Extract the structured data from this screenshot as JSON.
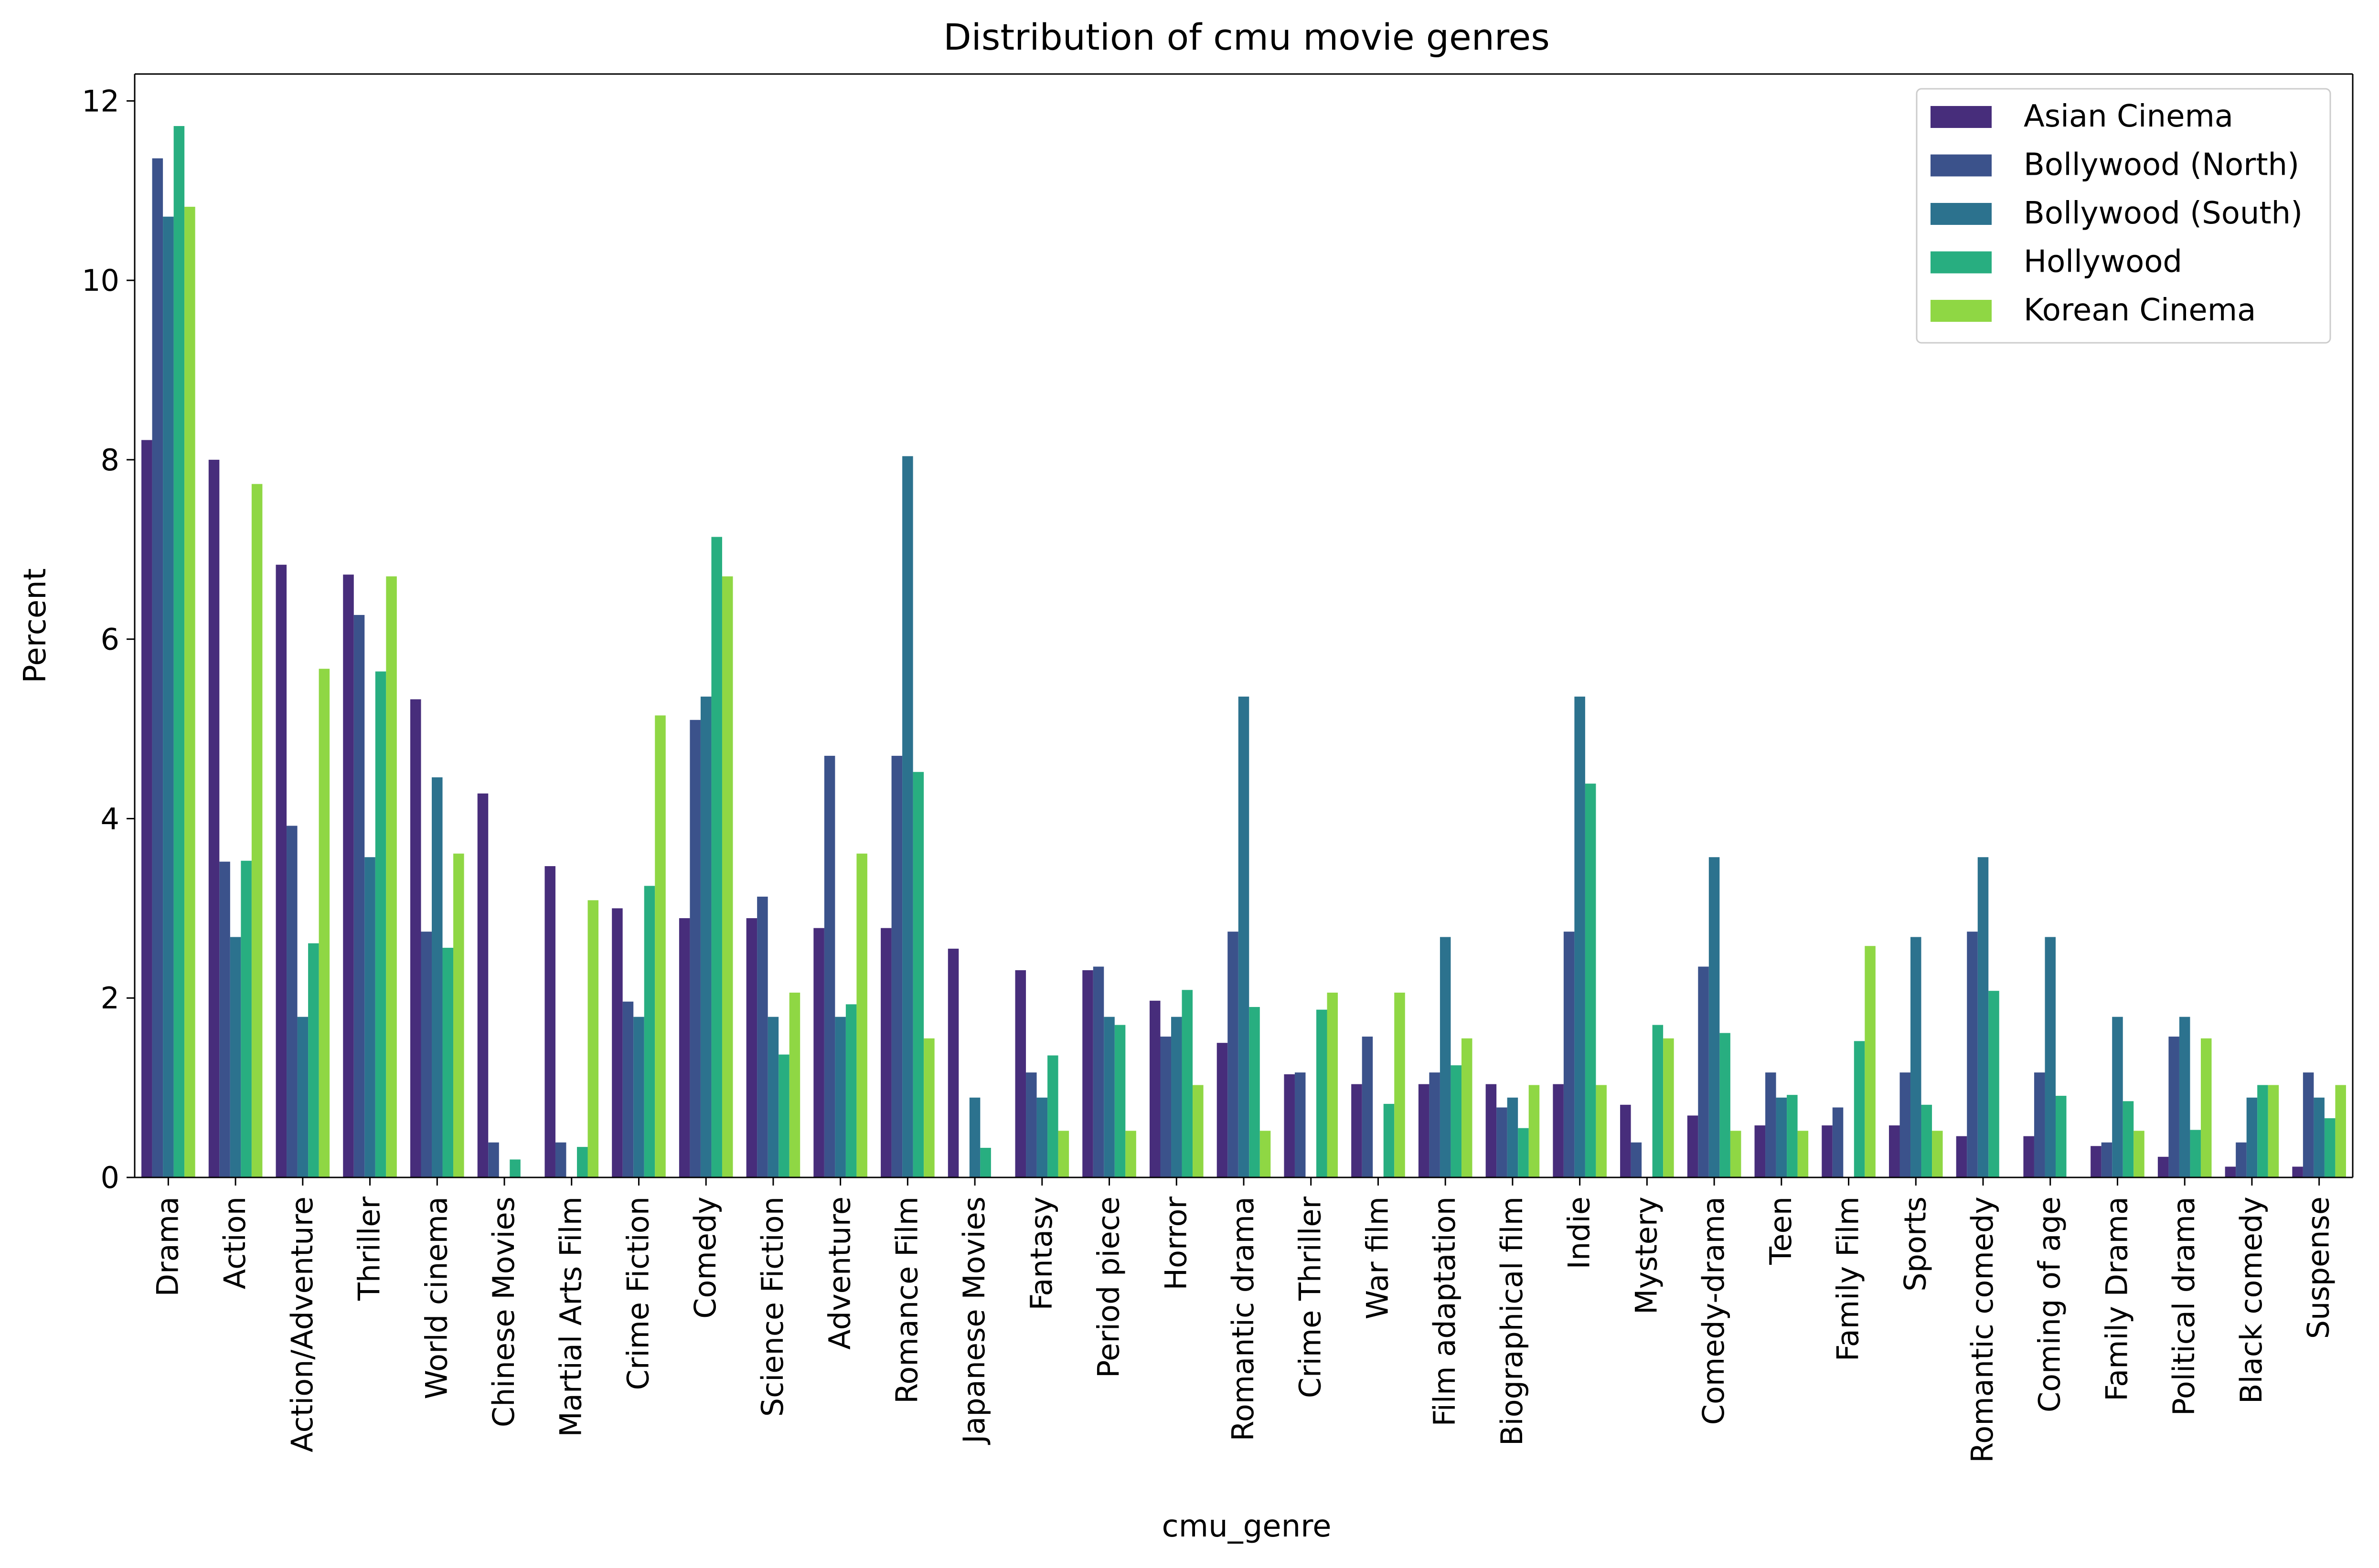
{
  "chart_data": {
    "type": "bar",
    "title": "Distribution of cmu movie genres",
    "xlabel": "cmu_genre",
    "ylabel": "Percent",
    "ylim": [
      0,
      12.3
    ],
    "yticks": [
      0,
      2,
      4,
      6,
      8,
      10,
      12
    ],
    "grid": false,
    "legend_position": "top-right",
    "categories": [
      "Drama",
      "Action",
      "Action/Adventure",
      "Thriller",
      "World cinema",
      "Chinese Movies",
      "Martial Arts Film",
      "Crime Fiction",
      "Comedy",
      "Science Fiction",
      "Adventure",
      "Romance Film",
      "Japanese Movies",
      "Fantasy",
      "Period piece",
      "Horror",
      "Romantic drama",
      "Crime Thriller",
      "War film",
      "Film adaptation",
      "Biographical film",
      "Indie",
      "Mystery",
      "Comedy-drama",
      "Teen",
      "Family Film",
      "Sports",
      "Romantic comedy",
      "Coming of age",
      "Family Drama",
      "Political drama",
      "Black comedy",
      "Suspense"
    ],
    "series": [
      {
        "name": "Asian Cinema",
        "color": "#472d7b",
        "values": [
          8.22,
          8.0,
          6.83,
          6.72,
          5.33,
          4.28,
          3.47,
          3.0,
          2.89,
          2.89,
          2.78,
          2.78,
          2.55,
          2.31,
          2.31,
          1.97,
          1.5,
          1.15,
          1.04,
          1.04,
          1.04,
          1.04,
          0.81,
          0.69,
          0.58,
          0.58,
          0.58,
          0.46,
          0.46,
          0.35,
          0.23,
          0.12,
          0.12
        ]
      },
      {
        "name": "Bollywood (North)",
        "color": "#3b528b",
        "values": [
          11.36,
          3.52,
          3.92,
          6.27,
          2.74,
          0.39,
          0.39,
          1.96,
          5.1,
          3.13,
          4.7,
          4.7,
          0.0,
          1.17,
          2.35,
          1.57,
          2.74,
          1.17,
          1.57,
          1.17,
          0.78,
          2.74,
          0.39,
          2.35,
          1.17,
          0.78,
          1.17,
          2.74,
          1.17,
          0.39,
          1.57,
          0.39,
          1.17
        ]
      },
      {
        "name": "Bollywood (South)",
        "color": "#2c728e",
        "values": [
          10.71,
          2.68,
          1.79,
          3.57,
          4.46,
          0.0,
          0.0,
          1.79,
          5.36,
          1.79,
          1.79,
          8.04,
          0.89,
          0.89,
          1.79,
          1.79,
          5.36,
          0.0,
          0.0,
          2.68,
          0.89,
          5.36,
          0.0,
          3.57,
          0.89,
          0.0,
          2.68,
          3.57,
          2.68,
          1.79,
          1.79,
          0.89,
          0.89
        ]
      },
      {
        "name": "Hollywood",
        "color": "#28ae80",
        "values": [
          11.72,
          3.53,
          2.61,
          5.64,
          2.56,
          0.2,
          0.34,
          3.25,
          7.14,
          1.37,
          1.93,
          4.52,
          0.33,
          1.36,
          1.7,
          2.09,
          1.9,
          1.87,
          0.82,
          1.25,
          0.55,
          4.39,
          1.7,
          1.61,
          0.92,
          1.52,
          0.81,
          2.08,
          0.91,
          0.85,
          0.53,
          1.03,
          0.66
        ]
      },
      {
        "name": "Korean Cinema",
        "color": "#8fd744",
        "values": [
          10.82,
          7.73,
          5.67,
          6.7,
          3.61,
          0.0,
          3.09,
          5.15,
          6.7,
          2.06,
          3.61,
          1.55,
          0.0,
          0.52,
          0.52,
          1.03,
          0.52,
          2.06,
          2.06,
          1.55,
          1.03,
          1.03,
          1.55,
          0.52,
          0.52,
          2.58,
          0.52,
          0.0,
          0.0,
          0.52,
          1.55,
          1.03,
          1.03
        ]
      }
    ]
  }
}
